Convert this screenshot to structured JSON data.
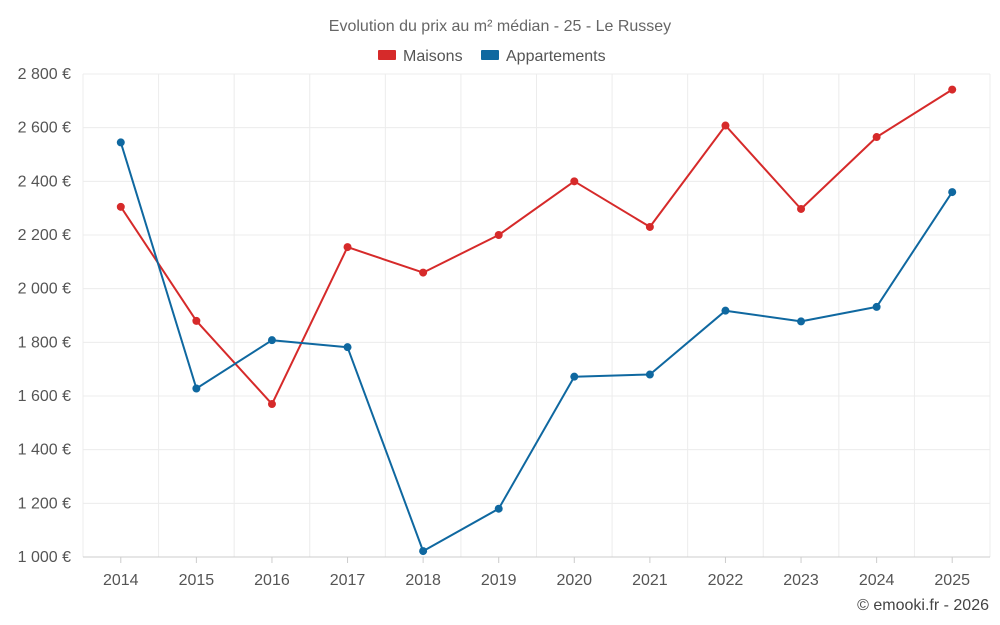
{
  "chart_data": {
    "type": "line",
    "title": "Evolution du prix au m² médian - 25 - Le Russey",
    "x": [
      "2014",
      "2015",
      "2016",
      "2017",
      "2018",
      "2019",
      "2020",
      "2021",
      "2022",
      "2023",
      "2024",
      "2025"
    ],
    "series": [
      {
        "name": "Maisons",
        "color": "#d62a2a",
        "values": [
          2305,
          1880,
          1570,
          2155,
          2060,
          2200,
          2400,
          2230,
          2608,
          2297,
          2565,
          2742
        ]
      },
      {
        "name": "Appartements",
        "color": "#0f68a0",
        "values": [
          2545,
          1628,
          1808,
          1782,
          1022,
          1180,
          1672,
          1680,
          1918,
          1878,
          1932,
          2360
        ]
      }
    ],
    "ylim": [
      1000,
      2800
    ],
    "yticks": [
      1000,
      1200,
      1400,
      1600,
      1800,
      2000,
      2200,
      2400,
      2600,
      2800
    ],
    "ytick_labels": [
      "1 000 €",
      "1 200 €",
      "1 400 €",
      "1 600 €",
      "1 800 €",
      "2 000 €",
      "2 200 €",
      "2 400 €",
      "2 600 €",
      "2 800 €"
    ],
    "xlabel": "",
    "ylabel": "",
    "grid": true,
    "legend_position": "top-center"
  },
  "credit": "© emooki.fr - 2026"
}
